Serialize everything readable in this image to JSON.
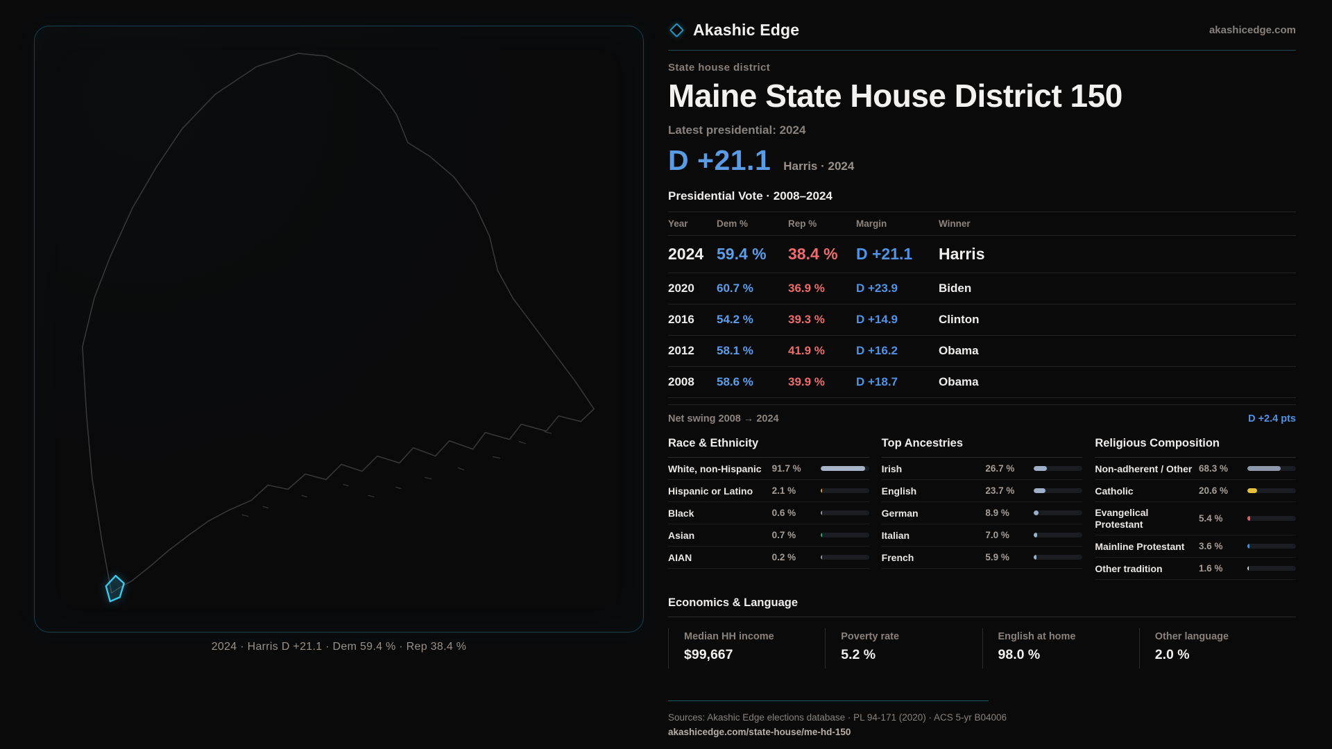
{
  "brand": {
    "name": "Akashic Edge",
    "domain": "akashicedge.com"
  },
  "page": {
    "eyebrow": "State house district",
    "title": "Maine State House District 150",
    "latest_label": "Latest presidential: 2024",
    "headline_margin": "D +21.1",
    "headline_context": "Harris · 2024",
    "table_title": "Presidential Vote · 2008–2024"
  },
  "map": {
    "caption": "2024 · Harris D +21.1 · Dem 59.4 % · Rep 38.4 %"
  },
  "vote_table": {
    "columns": [
      "Year",
      "Dem %",
      "Rep %",
      "Margin",
      "Winner"
    ],
    "rows": [
      {
        "year": "2024",
        "dem": "59.4 %",
        "rep": "38.4 %",
        "margin": "D +21.1",
        "winner": "Harris"
      },
      {
        "year": "2020",
        "dem": "60.7 %",
        "rep": "36.9 %",
        "margin": "D +23.9",
        "winner": "Biden"
      },
      {
        "year": "2016",
        "dem": "54.2 %",
        "rep": "39.3 %",
        "margin": "D +14.9",
        "winner": "Clinton"
      },
      {
        "year": "2012",
        "dem": "58.1 %",
        "rep": "41.9 %",
        "margin": "D +16.2",
        "winner": "Obama"
      },
      {
        "year": "2008",
        "dem": "58.6 %",
        "rep": "39.9 %",
        "margin": "D +18.7",
        "winner": "Obama"
      }
    ]
  },
  "net_swing": {
    "label": "Net swing 2008 → 2024",
    "value": "D +2.4 pts"
  },
  "demographics": [
    {
      "title": "Race & Ethnicity",
      "rows": [
        {
          "label": "White, non-Hispanic",
          "value": "91.7 %",
          "pct": 91.7,
          "color": "#a7b3c7"
        },
        {
          "label": "Hispanic or Latino",
          "value": "2.1 %",
          "pct": 2.1,
          "color": "#e09c3c"
        },
        {
          "label": "Black",
          "value": "0.6 %",
          "pct": 0.6,
          "color": "#8f99a5"
        },
        {
          "label": "Asian",
          "value": "0.7 %",
          "pct": 0.7,
          "color": "#2fae7e"
        },
        {
          "label": "AIAN",
          "value": "0.2 %",
          "pct": 0.2,
          "color": "#8f99a5"
        }
      ]
    },
    {
      "title": "Top Ancestries",
      "rows": [
        {
          "label": "Irish",
          "value": "26.7 %",
          "pct": 26.7,
          "color": "#9db0c8"
        },
        {
          "label": "English",
          "value": "23.7 %",
          "pct": 23.7,
          "color": "#9db0c8"
        },
        {
          "label": "German",
          "value": "8.9 %",
          "pct": 8.9,
          "color": "#9db0c8"
        },
        {
          "label": "Italian",
          "value": "7.0 %",
          "pct": 7.0,
          "color": "#9db0c8"
        },
        {
          "label": "French",
          "value": "5.9 %",
          "pct": 5.9,
          "color": "#9db0c8"
        }
      ]
    },
    {
      "title": "Religious Composition",
      "rows": [
        {
          "label": "Non-adherent / Other",
          "value": "68.3 %",
          "pct": 68.3,
          "color": "#8e9aab"
        },
        {
          "label": "Catholic",
          "value": "20.6 %",
          "pct": 20.6,
          "color": "#e5c03c"
        },
        {
          "label": "Evangelical Protestant",
          "value": "5.4 %",
          "pct": 5.4,
          "color": "#e06161"
        },
        {
          "label": "Mainline Protestant",
          "value": "3.6 %",
          "pct": 3.6,
          "color": "#4a90e0"
        },
        {
          "label": "Other tradition",
          "value": "1.6 %",
          "pct": 1.6,
          "color": "#d6d6d6"
        }
      ]
    }
  ],
  "economics": {
    "title": "Economics & Language",
    "stats": [
      {
        "label": "Median HH income",
        "value": "$99,667"
      },
      {
        "label": "Poverty rate",
        "value": "5.2 %"
      },
      {
        "label": "English at home",
        "value": "98.0 %"
      },
      {
        "label": "Other language",
        "value": "2.0 %"
      }
    ]
  },
  "footer": {
    "sources": "Sources: Akashic Edge elections database · PL 94-171 (2020) · ACS 5-yr B04006",
    "permalink": "akashicedge.com/state-house/me-hd-150"
  },
  "colors": {
    "accent_teal": "#2496b8",
    "dem_blue": "#5b9ee9",
    "rep_red": "#ee6c6c",
    "district_cyan": "#3cc9ef"
  }
}
